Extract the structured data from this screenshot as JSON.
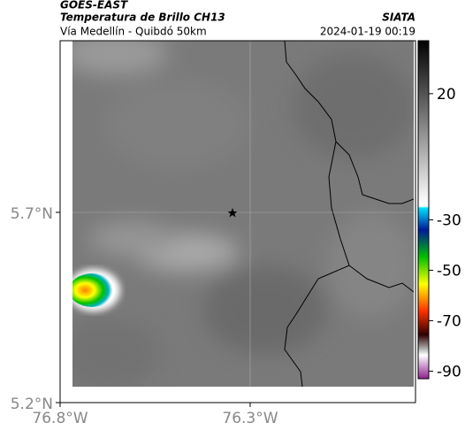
{
  "header": {
    "source": "GOES-EAST",
    "title": "Temperatura de Brillo CH13",
    "subtitle": "Vía Medellín - Quibdó 50km",
    "agency": "SIATA",
    "datetime": "2024-01-19 00:19"
  },
  "map": {
    "xlim": [
      -76.8,
      -75.865
    ],
    "ylim": [
      5.2,
      6.151
    ],
    "xticks": [
      {
        "value": -76.8,
        "label": "76.8°W"
      },
      {
        "value": -76.3,
        "label": "76.3°W"
      }
    ],
    "yticks": [
      {
        "value": 5.2,
        "label": "5.2°N"
      },
      {
        "value": 5.7,
        "label": "5.7°N"
      }
    ]
  },
  "colorbar": {
    "lim": [
      41,
      -93
    ],
    "ticks": [
      20,
      -30,
      -50,
      -70,
      -90
    ]
  }
}
